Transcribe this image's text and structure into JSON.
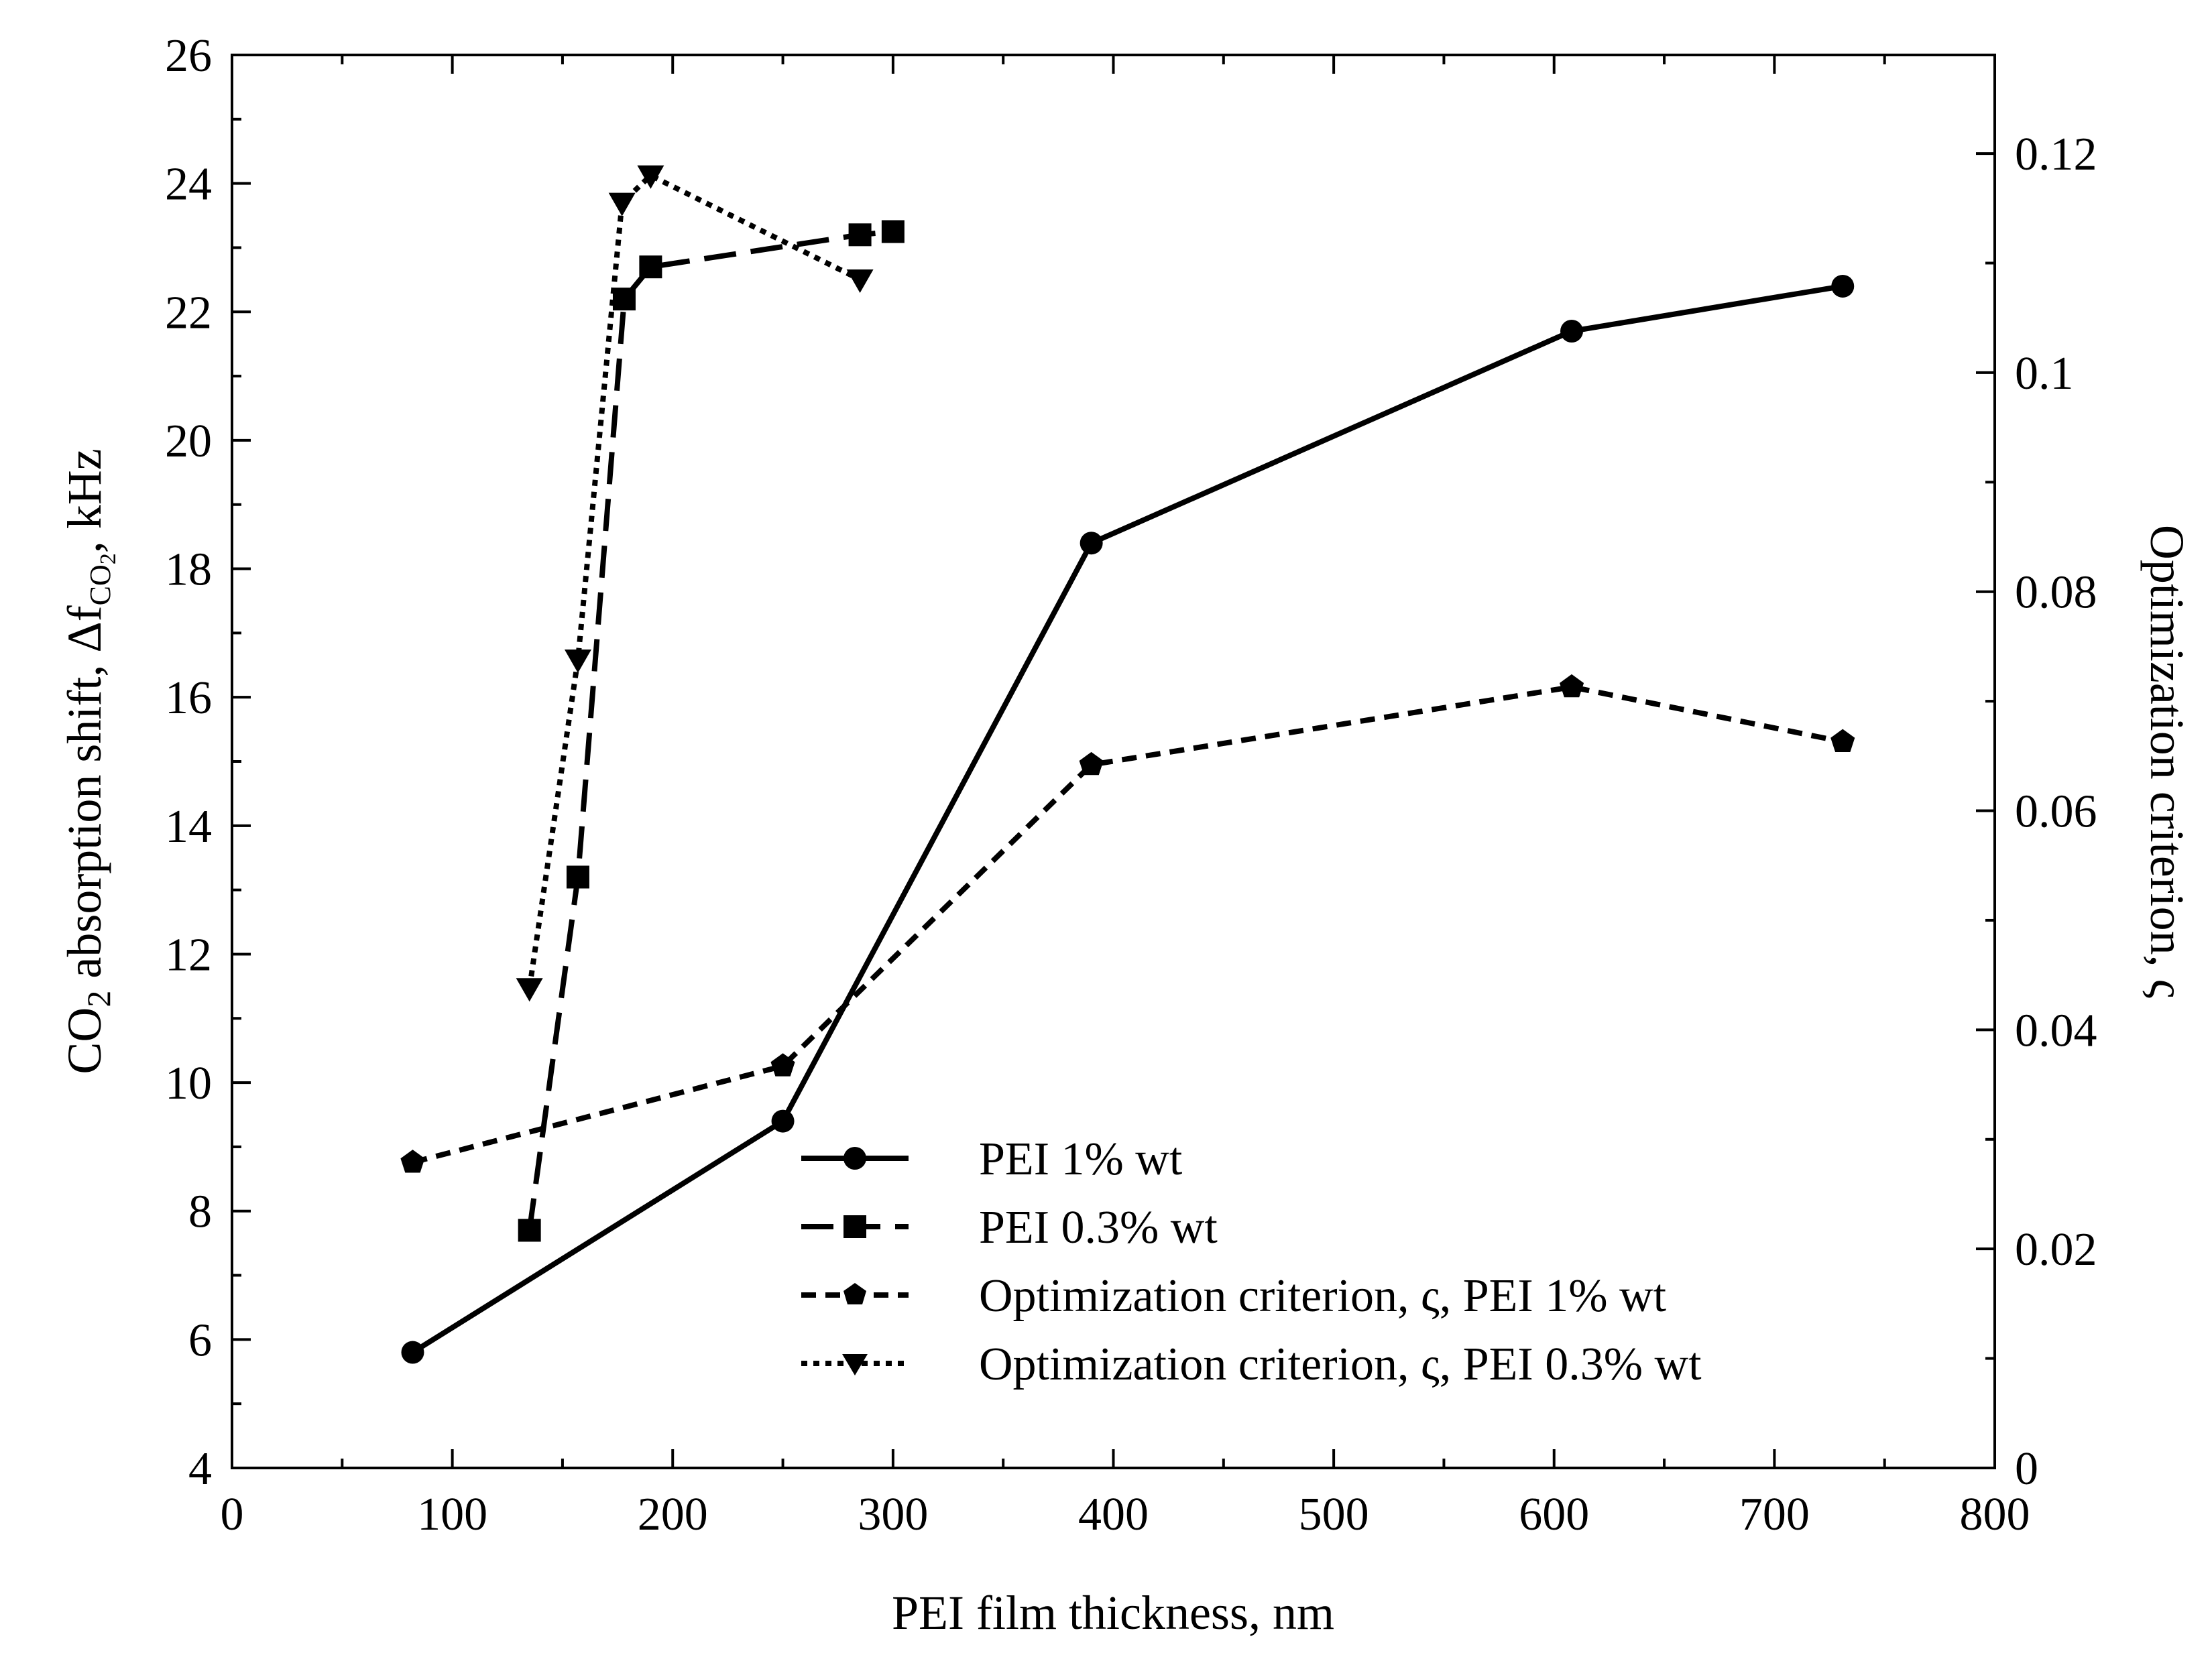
{
  "chart_data": {
    "type": "line",
    "xlabel": "PEI film thickness, nm",
    "ylabel_left": {
      "pre": "CO",
      "sub1": "2",
      "mid": " absorption shift, Δf",
      "sub2": "CO",
      "sub3": "2",
      "post": ", kHz"
    },
    "ylabel_right": "Optimization criterion, ς",
    "xlim": [
      0,
      800
    ],
    "ylim_left": [
      4,
      26
    ],
    "ylim_right": [
      0,
      0.129
    ],
    "x_ticks": [
      0,
      100,
      200,
      300,
      400,
      500,
      600,
      700,
      800
    ],
    "x_tick_labels": [
      "0",
      "100",
      "200",
      "300",
      "400",
      "500",
      "600",
      "700",
      "800"
    ],
    "y_left_ticks": [
      4,
      6,
      8,
      10,
      12,
      14,
      16,
      18,
      20,
      22,
      24,
      26
    ],
    "y_left_tick_labels": [
      "4",
      "6",
      "8",
      "10",
      "12",
      "14",
      "16",
      "18",
      "20",
      "22",
      "24",
      "26"
    ],
    "y_right_ticks": [
      0,
      0.02,
      0.04,
      0.06,
      0.08,
      0.1,
      0.12
    ],
    "y_right_tick_labels": [
      "0",
      "0.02",
      "0.04",
      "0.06",
      "0.08",
      "0.1",
      "0.12"
    ],
    "legend_position": "bottom-right",
    "series": [
      {
        "name": "PEI 1% wt",
        "axis": "left",
        "style": "solid",
        "marker": "circle",
        "x": [
          82,
          250,
          390,
          608,
          731
        ],
        "y": [
          5.8,
          9.4,
          18.4,
          21.7,
          22.4
        ]
      },
      {
        "name": "PEI 0.3% wt",
        "axis": "left",
        "style": "dashed",
        "marker": "square",
        "x": [
          135,
          157,
          178,
          190,
          285,
          300
        ],
        "y": [
          7.7,
          13.2,
          22.2,
          22.7,
          23.2,
          23.25
        ]
      },
      {
        "name": "Optimization criterion, ς, PEI 1% wt",
        "axis": "right",
        "style": "shortdash",
        "marker": "pentagon",
        "x": [
          82,
          250,
          390,
          608,
          731
        ],
        "y": [
          0.0279,
          0.0367,
          0.0642,
          0.0713,
          0.0663
        ]
      },
      {
        "name": "Optimization criterion, ς, PEI 0.3% wt",
        "axis": "right",
        "style": "dotted",
        "marker": "triangle-down",
        "x": [
          135,
          157,
          177,
          190,
          285
        ],
        "y": [
          0.0438,
          0.0738,
          0.1155,
          0.118,
          0.1085
        ]
      }
    ]
  }
}
